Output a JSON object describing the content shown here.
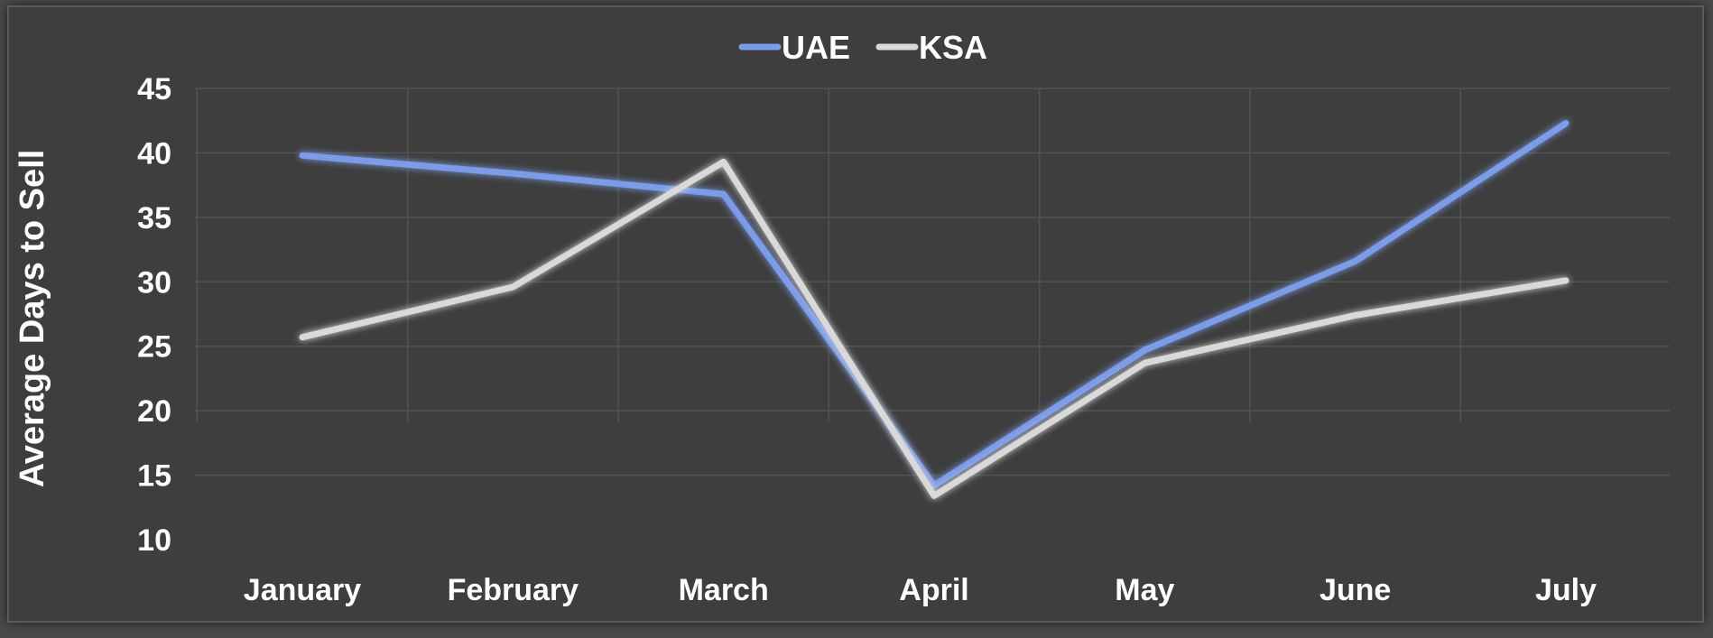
{
  "chart_data": {
    "type": "line",
    "categories": [
      "January",
      "February",
      "March",
      "April",
      "May",
      "June",
      "July"
    ],
    "series": [
      {
        "name": "UAE",
        "color": "#7b9ce8",
        "values": [
          39.8,
          38.4,
          36.8,
          14.2,
          24.7,
          31.6,
          42.3
        ]
      },
      {
        "name": "KSA",
        "color": "#d9d9d9",
        "values": [
          25.7,
          29.6,
          39.3,
          13.4,
          23.7,
          27.4,
          30.1
        ]
      }
    ],
    "ylabel": "Average Days to Sell",
    "xlabel": "",
    "ylim": [
      10,
      45
    ],
    "yticks": [
      45,
      40,
      35,
      30,
      25,
      20,
      15,
      10
    ],
    "grid": true,
    "legend_position": "top-center"
  }
}
